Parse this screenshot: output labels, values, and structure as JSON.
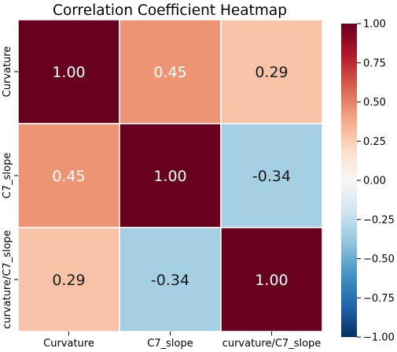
{
  "chart_data": {
    "type": "heatmap",
    "title": "Correlation Coefficient Heatmap",
    "categories": [
      "Curvature",
      "C7_slope",
      "curvature/C7_slope"
    ],
    "x_tick_labels": [
      "Curvature",
      "C7_slope",
      "curvature/C7_slope"
    ],
    "y_tick_labels": [
      "Curvature",
      "C7_slope",
      "curvature/C7_slope"
    ],
    "values": [
      [
        1.0,
        0.45,
        0.29
      ],
      [
        0.45,
        1.0,
        -0.34
      ],
      [
        0.29,
        -0.34,
        1.0
      ]
    ],
    "cell_labels": [
      [
        "1.00",
        "0.45",
        "0.29"
      ],
      [
        "0.45",
        "1.00",
        "-0.34"
      ],
      [
        "0.29",
        "-0.34",
        "1.00"
      ]
    ],
    "colorbar": {
      "vmin": -1.0,
      "vmax": 1.0,
      "ticks": [
        1.0,
        0.75,
        0.5,
        0.25,
        0.0,
        -0.25,
        -0.5,
        -0.75,
        -1.0
      ],
      "tick_labels": [
        "1.00",
        "0.75",
        "0.50",
        "0.25",
        "0.00",
        "−0.25",
        "−0.50",
        "−0.75",
        "−1.00"
      ],
      "colormap": "RdBu_r"
    },
    "grid": true,
    "legend": "colorbar-right"
  }
}
